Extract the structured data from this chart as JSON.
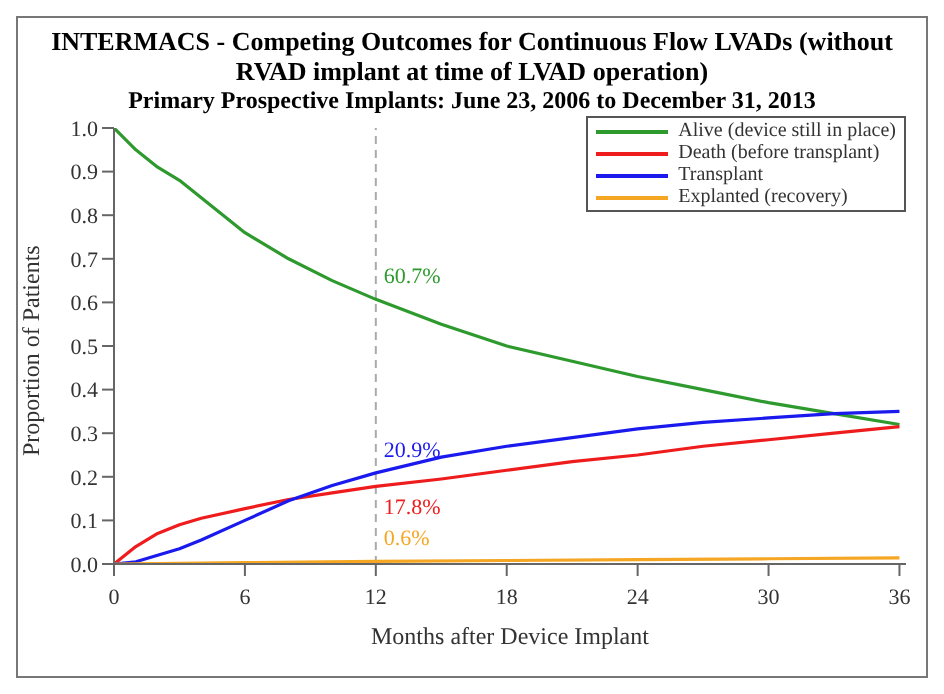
{
  "chart_data": {
    "type": "line",
    "title": "INTERMACS - Competing Outcomes for Continuous Flow LVADs (without RVAD implant at time of LVAD operation)",
    "subtitle": "Primary Prospective Implants: June 23, 2006 to December 31, 2013",
    "xlabel": "Months after Device Implant",
    "ylabel": "Proportion of Patients",
    "x": [
      0,
      1,
      2,
      3,
      4,
      6,
      8,
      10,
      12,
      15,
      18,
      21,
      24,
      27,
      30,
      33,
      36
    ],
    "series": [
      {
        "name": "Alive (device still in place)",
        "color": "#2e9a2e",
        "values": [
          1.0,
          0.95,
          0.91,
          0.88,
          0.84,
          0.76,
          0.7,
          0.65,
          0.607,
          0.55,
          0.5,
          0.465,
          0.43,
          0.4,
          0.37,
          0.345,
          0.32
        ],
        "value_labels": [
          null,
          null,
          null,
          null,
          null,
          null,
          null,
          null,
          "60.7%",
          null,
          null,
          null,
          null,
          null,
          null,
          null,
          null
        ]
      },
      {
        "name": "Death (before transplant)",
        "color": "#ee1c1c",
        "values": [
          0,
          0.04,
          0.07,
          0.09,
          0.105,
          0.127,
          0.148,
          0.163,
          0.178,
          0.195,
          0.215,
          0.235,
          0.25,
          0.27,
          0.285,
          0.3,
          0.315
        ],
        "value_labels": [
          null,
          null,
          null,
          null,
          null,
          null,
          null,
          null,
          "17.8%",
          null,
          null,
          null,
          null,
          null,
          null,
          null,
          null
        ]
      },
      {
        "name": "Transplant",
        "color": "#1a1aee",
        "values": [
          0,
          0.005,
          0.02,
          0.035,
          0.055,
          0.1,
          0.145,
          0.18,
          0.209,
          0.245,
          0.27,
          0.29,
          0.31,
          0.325,
          0.335,
          0.345,
          0.35
        ],
        "value_labels": [
          null,
          null,
          null,
          null,
          null,
          null,
          null,
          null,
          "20.9%",
          null,
          null,
          null,
          null,
          null,
          null,
          null,
          null
        ]
      },
      {
        "name": "Explanted (recovery)",
        "color": "#f5a623",
        "x": [
          0,
          6,
          12,
          18,
          24,
          30,
          36
        ],
        "values": [
          0,
          0.003,
          0.006,
          0.008,
          0.01,
          0.012,
          0.014
        ],
        "value_labels": [
          null,
          null,
          "0.6%",
          null,
          null,
          null,
          null
        ]
      }
    ],
    "ref_lines": [
      {
        "axis": "x",
        "value": 12,
        "color": "#aaaaaa",
        "line_style": "dashed"
      }
    ],
    "xlim": [
      0,
      36.3
    ],
    "xticks": [
      0,
      6,
      12,
      18,
      24,
      30,
      36
    ],
    "ylim": [
      0,
      1.0
    ],
    "yticks": [
      {
        "value": 0,
        "label": "0.0"
      },
      {
        "value": 0.1,
        "label": "0.1"
      },
      {
        "value": 0.2,
        "label": "0.2"
      },
      {
        "value": 0.3,
        "label": "0.3"
      },
      {
        "value": 0.4,
        "label": "0.4"
      },
      {
        "value": 0.5,
        "label": "0.5"
      },
      {
        "value": 0.6,
        "label": "0.6"
      },
      {
        "value": 0.7,
        "label": "0.7"
      },
      {
        "value": 0.8,
        "label": "0.8"
      },
      {
        "value": 0.9,
        "label": "0.9"
      },
      {
        "value": 1.0,
        "label": "1.0"
      }
    ],
    "legend": "top right",
    "grid": false,
    "marker": "none",
    "line_style": "solid"
  }
}
